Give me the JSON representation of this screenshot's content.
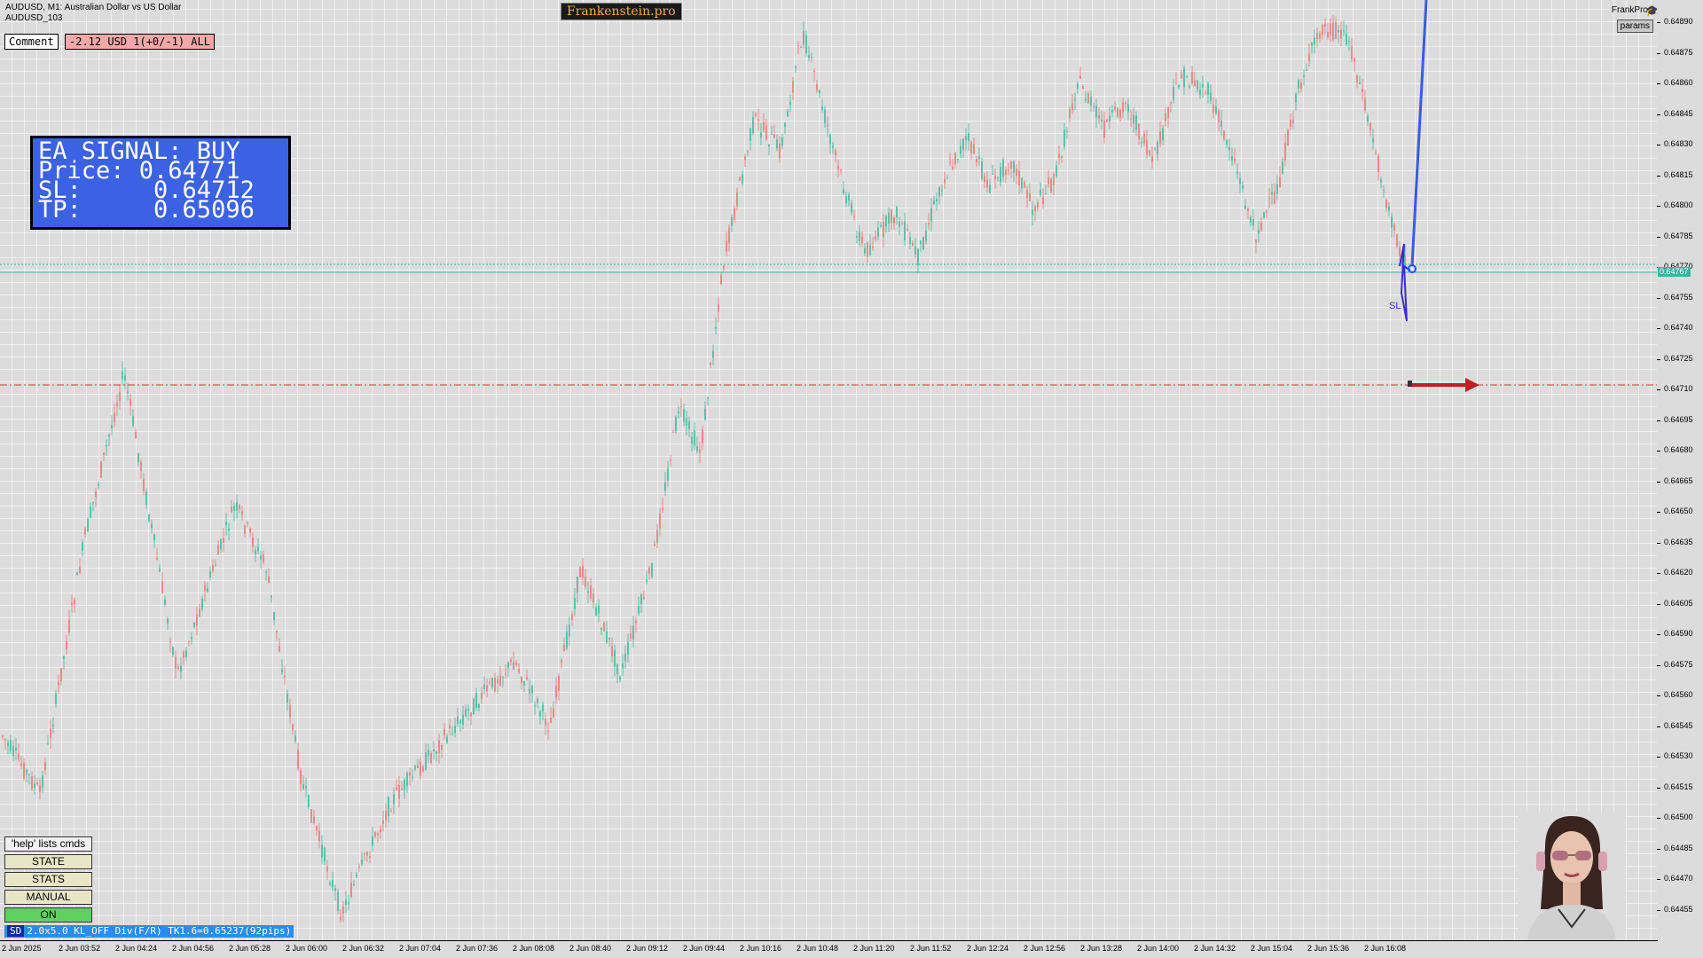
{
  "header": {
    "symbol_line": "AUDUSD, M1:  Australian Dollar vs US Dollar",
    "account_line": "AUDUSD_103",
    "brand": "Frankenstein.pro"
  },
  "toolbar": {
    "comment_label": "Comment",
    "pnl_text": "-2.12 USD 1(+0/-1) ALL"
  },
  "signal": {
    "line1": "EA SIGNAL: BUY",
    "line2": "Price: 0.64771",
    "line3": "SL:     0.64712",
    "line4": "TP:     0.65096"
  },
  "top_right": {
    "frankpro_label": "FrankPro",
    "params_label": "params"
  },
  "commands": {
    "help": "'help' lists cmds",
    "state": "STATE",
    "stats": "STATS",
    "manual": "MANUAL",
    "on": "ON"
  },
  "status_bar": {
    "sd_label": "SD",
    "text": "2.0x5.0 KL_OFF Div(F/R) TK1.6=0.65237(92pips)"
  },
  "chart_labels": {
    "sl_marker": "SL"
  },
  "price_axis": {
    "ticks": [
      "0.64890",
      "0.64875",
      "0.64860",
      "0.64845",
      "0.64830",
      "0.64815",
      "0.64800",
      "0.64785",
      "0.64770",
      "0.64755",
      "0.64740",
      "0.64725",
      "0.64710",
      "0.64695",
      "0.64680",
      "0.64665",
      "0.64650",
      "0.64635",
      "0.64620",
      "0.64605",
      "0.64590",
      "0.64575",
      "0.64560",
      "0.64545",
      "0.64530",
      "0.64515",
      "0.64500",
      "0.64485",
      "0.64470",
      "0.64455"
    ],
    "current_price": "0.64767"
  },
  "time_axis": {
    "ticks": [
      "2 Jun 2025",
      "2 Jun 03:52",
      "2 Jun 04:24",
      "2 Jun 04:56",
      "2 Jun 05:28",
      "2 Jun 06:00",
      "2 Jun 06:32",
      "2 Jun 07:04",
      "2 Jun 07:36",
      "2 Jun 08:08",
      "2 Jun 08:40",
      "2 Jun 09:12",
      "2 Jun 09:44",
      "2 Jun 10:16",
      "2 Jun 10:48",
      "2 Jun 11:20",
      "2 Jun 11:52",
      "2 Jun 12:24",
      "2 Jun 12:56",
      "2 Jun 13:28",
      "2 Jun 14:00",
      "2 Jun 14:32",
      "2 Jun 15:04",
      "2 Jun 15:36",
      "2 Jun 16:08"
    ]
  },
  "colors": {
    "bull": "#5fbfa8",
    "bear": "#e88a8a",
    "entry_line": "#3cb4a0",
    "sl_line": "#e03030",
    "signal_bg": "#3c62e4",
    "forecast": "#3a5ae8"
  }
}
